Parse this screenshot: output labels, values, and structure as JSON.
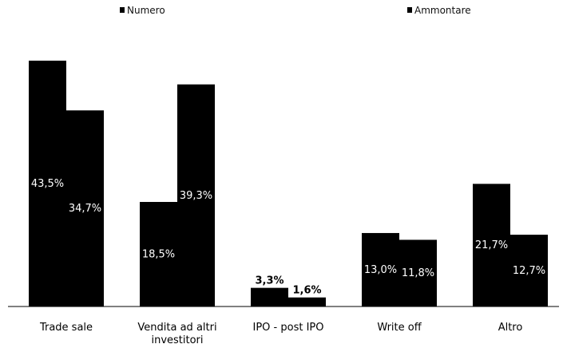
{
  "chart_data": {
    "type": "bar",
    "categories": [
      "Trade sale",
      "Vendita ad altri investitori",
      "IPO - post IPO",
      "Write off",
      "Altro"
    ],
    "category_lines": [
      [
        "Trade sale"
      ],
      [
        "Vendita ad altri",
        "investitori"
      ],
      [
        "IPO - post IPO"
      ],
      [
        "Write off"
      ],
      [
        "Altro"
      ]
    ],
    "series": [
      {
        "name": "Numero",
        "values": [
          43.5,
          18.5,
          3.3,
          13.0,
          21.7
        ],
        "labels": [
          "43,5%",
          "18,5%",
          "3,3%",
          "13,0%",
          "21,7%"
        ]
      },
      {
        "name": "Ammontare",
        "values": [
          34.7,
          39.3,
          1.6,
          11.8,
          12.7
        ],
        "labels": [
          "34,7%",
          "39,3%",
          "1,6%",
          "11,8%",
          "12,7%"
        ]
      }
    ],
    "ylim": [
      0,
      44
    ],
    "legend_position": "top",
    "grid": false,
    "colors": {
      "bar": "#000000",
      "inside_label": "#ffffff",
      "outside_label": "#000000"
    }
  }
}
